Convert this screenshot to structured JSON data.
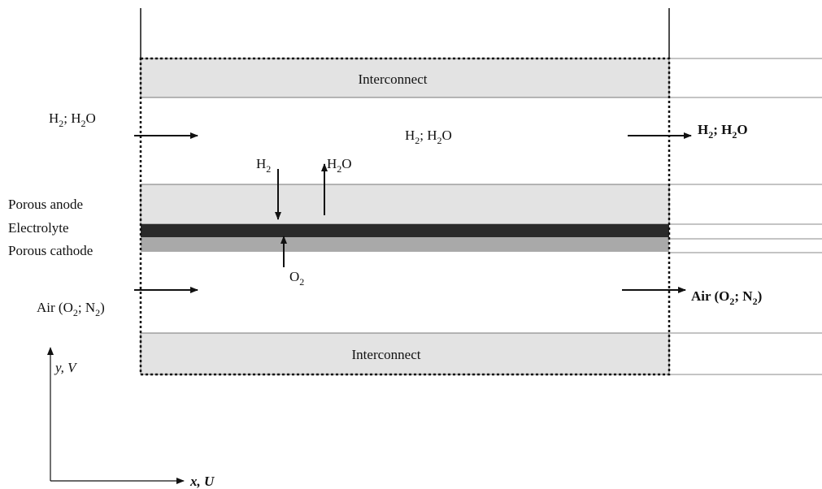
{
  "layers": {
    "interconnect_top": "Interconnect",
    "interconnect_bottom": "Interconnect",
    "porous_anode": "Porous anode",
    "electrolyte": "Electrolyte",
    "porous_cathode": "Porous cathode"
  },
  "species": {
    "fuel_inlet": {
      "a": "H",
      "a_sub": "2",
      "b": "; H",
      "b_sub": "2",
      "c": "O"
    },
    "fuel_channel": {
      "a": "H",
      "a_sub": "2",
      "b": "; H",
      "b_sub": "2",
      "c": "O"
    },
    "fuel_outlet": {
      "a": "H",
      "a_sub": "2",
      "b": "; H",
      "b_sub": "2",
      "c": "O"
    },
    "h2_down": {
      "a": "H",
      "a_sub": "2"
    },
    "h2o_up": {
      "a": "H",
      "a_sub": "2",
      "b": "O"
    },
    "o2_up": {
      "a": "O",
      "a_sub": "2"
    },
    "air_inlet": {
      "a": "Air (O",
      "a_sub": "2",
      "b": "; N",
      "b_sub": "2",
      "c": ")"
    },
    "air_outlet": {
      "a": "Air (O",
      "a_sub": "2",
      "b": "; N",
      "b_sub": "2",
      "c": ")"
    }
  },
  "axes": {
    "y": "y, V",
    "x": "x, U"
  },
  "colors": {
    "interconnect": "#e3e3e3",
    "anode": "#e3e3e3",
    "electrolyte": "#2a2a2a",
    "cathode": "#a9a9a9",
    "line": "#111111"
  }
}
